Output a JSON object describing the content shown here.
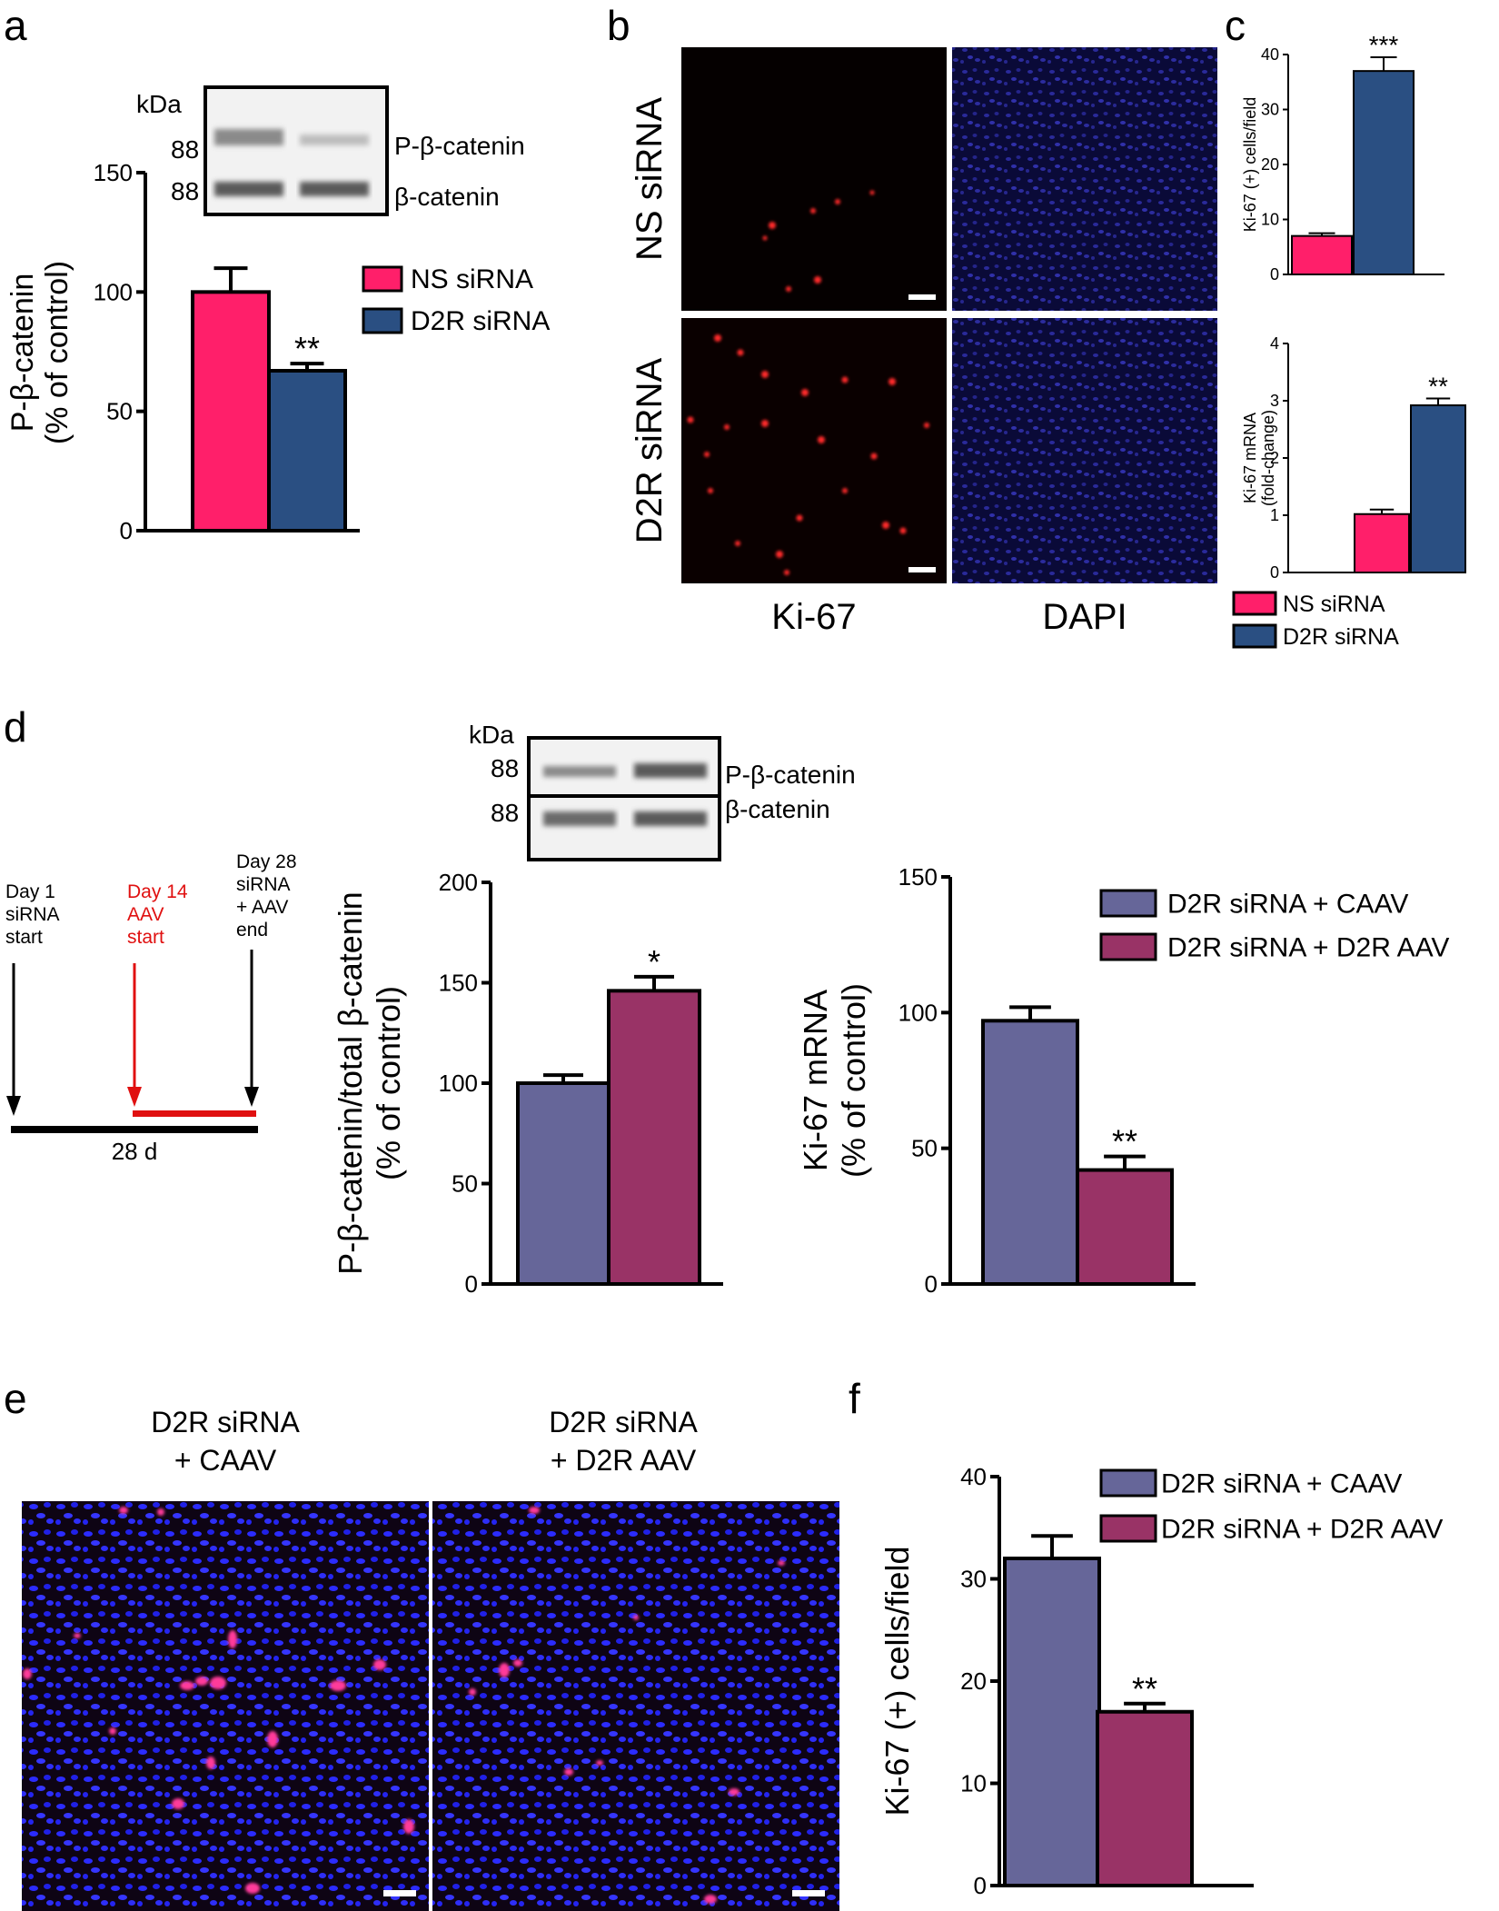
{
  "colors": {
    "ns": "#ff1f6a",
    "d2r": "#2a4f82",
    "caav": "#666699",
    "d2raav": "#993366",
    "red": "#e01010"
  },
  "panel_letters": [
    "a",
    "b",
    "c",
    "d",
    "e",
    "f"
  ],
  "blot_a": {
    "kda": "kDa",
    "mw": [
      "88",
      "88"
    ],
    "bands": [
      "P-β-catenin",
      "β-catenin"
    ]
  },
  "blot_d": {
    "kda": "kDa",
    "mw": [
      "88",
      "88"
    ],
    "bands": [
      "P-β-catenin",
      "β-catenin"
    ]
  },
  "panel_b": {
    "rows": [
      "NS siRNA",
      "D2R siRNA"
    ],
    "cols": [
      "Ki-67",
      "DAPI"
    ]
  },
  "timeline": {
    "day1": [
      "Day 1",
      "siRNA",
      "start"
    ],
    "day14": [
      "Day 14",
      "AAV",
      "start"
    ],
    "day28": [
      "Day 28",
      "siRNA",
      "+ AAV",
      "end"
    ],
    "duration": "28 d"
  },
  "panel_e": {
    "left_title": [
      "D2R siRNA",
      "+ CAAV"
    ],
    "right_title": [
      "D2R siRNA",
      "+ D2R AAV"
    ]
  },
  "chart_data": [
    {
      "id": "a",
      "type": "bar",
      "categories": [
        "NS siRNA",
        "D2R siRNA"
      ],
      "values": [
        100,
        67
      ],
      "errors": [
        10,
        3
      ],
      "significance": [
        "",
        "**"
      ],
      "ylabel": [
        "P-β-catenin",
        "(% of control)"
      ],
      "ylim": [
        0,
        150
      ],
      "yticks": [
        0,
        50,
        100,
        150
      ],
      "legend": [
        "NS siRNA",
        "D2R siRNA"
      ],
      "title": ""
    },
    {
      "id": "c-top",
      "type": "bar",
      "categories": [
        "NS siRNA",
        "D2R siRNA"
      ],
      "values": [
        7,
        37
      ],
      "errors": [
        0.5,
        2.5
      ],
      "significance": [
        "",
        "***"
      ],
      "ylabel": [
        "Ki-67 (+) cells/field"
      ],
      "ylim": [
        0,
        40
      ],
      "yticks": [
        0,
        10,
        20,
        30,
        40
      ],
      "title": ""
    },
    {
      "id": "c-bottom",
      "type": "bar",
      "categories": [
        "NS siRNA",
        "D2R siRNA"
      ],
      "values": [
        1.02,
        2.92
      ],
      "errors": [
        0.08,
        0.12
      ],
      "significance": [
        "",
        "**"
      ],
      "ylabel": [
        "Ki-67 mRNA",
        "(fold-change)"
      ],
      "ylim": [
        0,
        4
      ],
      "yticks": [
        0,
        1,
        2,
        3,
        4
      ],
      "legend": [
        "NS siRNA",
        "D2R siRNA"
      ],
      "title": ""
    },
    {
      "id": "d-left",
      "type": "bar",
      "categories": [
        "D2R siRNA + CAAV",
        "D2R siRNA + D2R AAV"
      ],
      "values": [
        100,
        146
      ],
      "errors": [
        4,
        7
      ],
      "significance": [
        "",
        "*"
      ],
      "ylabel": [
        "P-β-catenin/total β-catenin",
        "(% of control)"
      ],
      "ylim": [
        0,
        200
      ],
      "yticks": [
        0,
        50,
        100,
        150,
        200
      ],
      "title": ""
    },
    {
      "id": "d-right",
      "type": "bar",
      "categories": [
        "D2R siRNA + CAAV",
        "D2R siRNA + D2R AAV"
      ],
      "values": [
        97,
        42
      ],
      "errors": [
        5,
        5
      ],
      "significance": [
        "",
        "**"
      ],
      "ylabel": [
        "Ki-67  mRNA",
        "(% of control)"
      ],
      "ylim": [
        0,
        150
      ],
      "yticks": [
        0,
        50,
        100,
        150
      ],
      "legend": [
        "D2R siRNA + CAAV",
        "D2R siRNA + D2R AAV"
      ],
      "title": ""
    },
    {
      "id": "f",
      "type": "bar",
      "categories": [
        "D2R siRNA + CAAV",
        "D2R siRNA + D2R AAV"
      ],
      "values": [
        32,
        17
      ],
      "errors": [
        2.2,
        0.8
      ],
      "significance": [
        "",
        "**"
      ],
      "ylabel": [
        "Ki-67 (+) cells/field"
      ],
      "ylim": [
        0,
        40
      ],
      "yticks": [
        0,
        10,
        20,
        30,
        40
      ],
      "legend": [
        "D2R siRNA + CAAV",
        "D2R siRNA + D2R AAV"
      ],
      "title": ""
    }
  ]
}
